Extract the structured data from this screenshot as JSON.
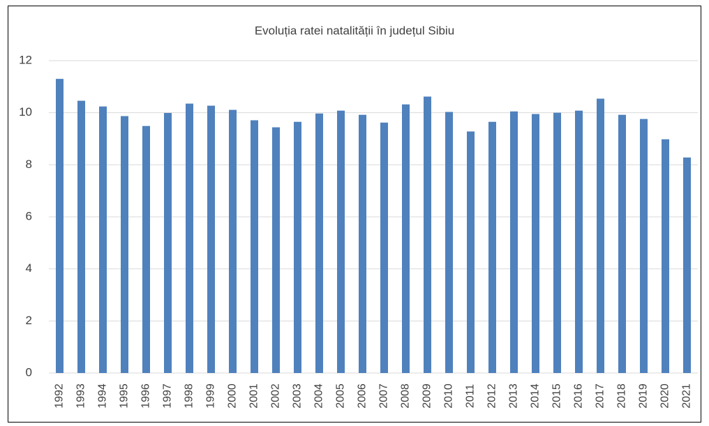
{
  "chart_data": {
    "type": "bar",
    "title": "Evoluția ratei natalității în județul Sibiu",
    "categories": [
      "1992",
      "1993",
      "1994",
      "1995",
      "1996",
      "1997",
      "1998",
      "1999",
      "2000",
      "2001",
      "2002",
      "2003",
      "2004",
      "2005",
      "2006",
      "2007",
      "2008",
      "2009",
      "2010",
      "2011",
      "2012",
      "2013",
      "2014",
      "2015",
      "2016",
      "2017",
      "2018",
      "2019",
      "2020",
      "2021"
    ],
    "values": [
      11.3,
      10.46,
      10.24,
      9.87,
      9.49,
      9.99,
      10.35,
      10.27,
      10.11,
      9.71,
      9.44,
      9.65,
      9.97,
      10.08,
      9.92,
      9.62,
      10.32,
      10.62,
      10.03,
      9.28,
      9.65,
      10.05,
      9.95,
      10.0,
      10.08,
      10.54,
      9.92,
      9.76,
      8.98,
      8.28
    ],
    "color": "#4f81bd",
    "ylim": [
      0,
      12
    ],
    "yticks": [
      0,
      2,
      4,
      6,
      8,
      10,
      12
    ],
    "grid": true
  }
}
